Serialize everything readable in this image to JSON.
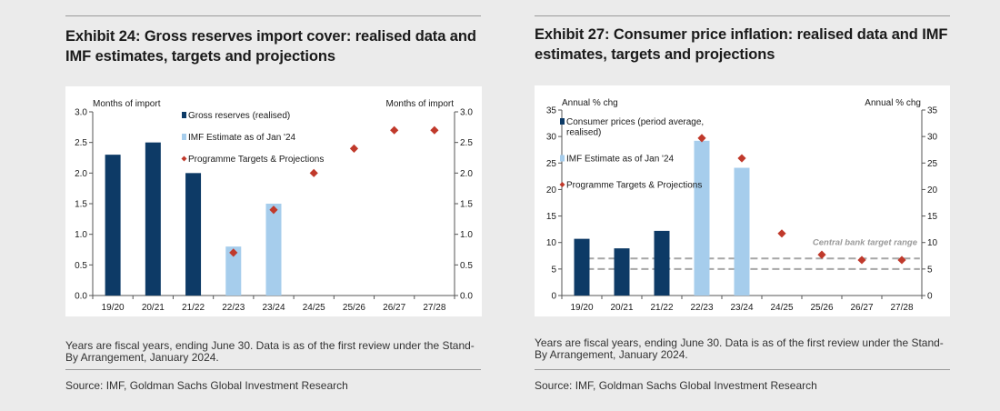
{
  "exhibits": [
    {
      "title": "Exhibit 24: Gross reserves import cover: realised data and IMF estimates, targets and projections",
      "note": "Years are fiscal years, ending June 30. Data is as of the first review under the Stand-By Arrangement, January 2024.",
      "source": "Source: IMF, Goldman Sachs Global Investment Research"
    },
    {
      "title": "Exhibit 27: Consumer price inflation: realised data and IMF estimates, targets and projections",
      "note": "Years are fiscal years, ending June 30. Data is as of the first review under the Stand-By Arrangement, January 2024.",
      "source": "Source: IMF, Goldman Sachs Global Investment Research"
    }
  ],
  "colors": {
    "realised": "#0d3a66",
    "imf": "#a6cdec",
    "programme": "#c0392b",
    "target_range": "#a6a6a6"
  },
  "chart_data": [
    {
      "type": "bar",
      "categories": [
        "19/20",
        "20/21",
        "21/22",
        "22/23",
        "23/24",
        "24/25",
        "25/26",
        "26/27",
        "27/28"
      ],
      "ylabel_left": "Months of import",
      "ylabel_right": "Months of import",
      "ylim": [
        0,
        3.0
      ],
      "ticks": [
        "0.0",
        "0.5",
        "1.0",
        "1.5",
        "2.0",
        "2.5",
        "3.0"
      ],
      "grid": false,
      "legend_position": "top-center",
      "series": [
        {
          "name": "Gross reserves (realised)",
          "type": "bar",
          "color": "#0d3a66",
          "values": [
            2.3,
            2.5,
            2.0,
            null,
            null,
            null,
            null,
            null,
            null
          ]
        },
        {
          "name": "IMF Estimate as of Jan '24",
          "type": "bar",
          "color": "#a6cdec",
          "values": [
            null,
            null,
            null,
            0.8,
            1.5,
            null,
            null,
            null,
            null
          ]
        },
        {
          "name": "Programme Targets & Projections",
          "type": "scatter",
          "color": "#c0392b",
          "values": [
            null,
            null,
            null,
            0.7,
            1.4,
            2.0,
            2.4,
            2.7,
            2.7
          ]
        }
      ]
    },
    {
      "type": "bar",
      "categories": [
        "19/20",
        "20/21",
        "21/22",
        "22/23",
        "23/24",
        "24/25",
        "25/26",
        "26/27",
        "27/28"
      ],
      "ylabel_left": "Annual % chg",
      "ylabel_right": "Annual % chg",
      "ylim": [
        0,
        35
      ],
      "ticks": [
        "0",
        "5",
        "10",
        "15",
        "20",
        "25",
        "30",
        "35"
      ],
      "grid": false,
      "legend_position": "top-left",
      "series": [
        {
          "name": "Consumer prices (period average, realised)",
          "legend_lines": [
            "Consumer prices (period average,",
            "realised)"
          ],
          "type": "bar",
          "color": "#0d3a66",
          "values": [
            10.7,
            8.9,
            12.2,
            null,
            null,
            null,
            null,
            null,
            null
          ]
        },
        {
          "name": "IMF Estimate as of Jan '24",
          "legend_lines": [
            "IMF Estimate as of Jan '24"
          ],
          "type": "bar",
          "color": "#a6cdec",
          "values": [
            null,
            null,
            null,
            29.2,
            24.1,
            null,
            null,
            null,
            null
          ]
        },
        {
          "name": "Programme Targets & Projections",
          "legend_lines": [
            "Programme Targets & Projections"
          ],
          "type": "scatter",
          "color": "#c0392b",
          "values": [
            null,
            null,
            null,
            29.7,
            25.9,
            11.7,
            7.7,
            6.7,
            6.7
          ]
        }
      ],
      "target_range": {
        "label": "Central bank target range",
        "low": 5,
        "high": 7,
        "color": "#a6a6a6"
      }
    }
  ]
}
